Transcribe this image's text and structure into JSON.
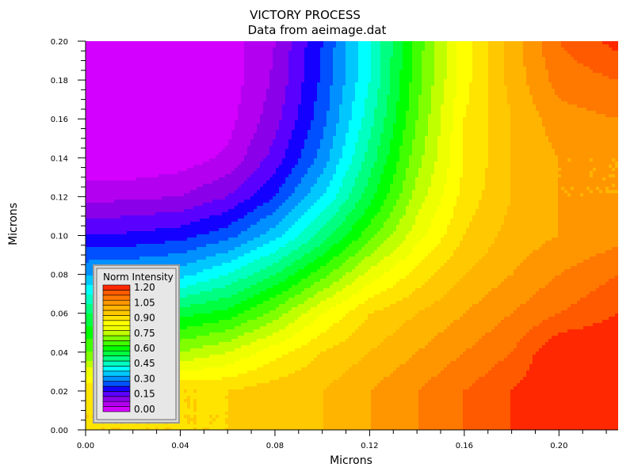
{
  "chart_data": {
    "type": "heatmap",
    "title": "VICTORY PROCESS",
    "subtitle": "Data from aeimage.dat",
    "xlabel": "Microns",
    "ylabel": "Microns",
    "xlim": [
      0.0,
      0.225
    ],
    "ylim": [
      0.0,
      0.2
    ],
    "x_ticks": [
      "0.00",
      "0.04",
      "0.08",
      "0.12",
      "0.16",
      "0.20"
    ],
    "y_ticks": [
      "0.00",
      "0.02",
      "0.04",
      "0.06",
      "0.08",
      "0.10",
      "0.12",
      "0.14",
      "0.16",
      "0.18",
      "0.20"
    ],
    "colorbar": {
      "title": "Norm Intensity",
      "min": 0.0,
      "max": 1.25,
      "step": 0.05,
      "tick_labels": [
        "1.20",
        "1.05",
        "0.90",
        "0.75",
        "0.60",
        "0.45",
        "0.30",
        "0.15",
        "0.00"
      ],
      "colors": [
        "#d400ff",
        "#b400f0",
        "#8a00e8",
        "#5a00ff",
        "#1400ff",
        "#0050ff",
        "#0090ff",
        "#00c8ff",
        "#00ffff",
        "#00ffc0",
        "#00ff80",
        "#00ff40",
        "#00ff00",
        "#40ff00",
        "#80ff00",
        "#c0ff00",
        "#eeff00",
        "#ffff00",
        "#ffe400",
        "#ffc800",
        "#ffb400",
        "#ff9600",
        "#ff7800",
        "#ff5a00",
        "#ff2800"
      ]
    },
    "grid": false,
    "legend_placement": "bottom-left",
    "x_nodes": [
      0.0,
      0.02,
      0.04,
      0.06,
      0.08,
      0.1,
      0.12,
      0.14,
      0.16,
      0.18,
      0.2,
      0.225
    ],
    "y_nodes": [
      0.0,
      0.02,
      0.04,
      0.06,
      0.08,
      0.1,
      0.12,
      0.14,
      0.16,
      0.18,
      0.2
    ],
    "values": [
      [
        0.95,
        0.95,
        0.95,
        0.95,
        0.95,
        1.0,
        1.05,
        1.1,
        1.15,
        1.2,
        1.2,
        1.2
      ],
      [
        0.95,
        0.95,
        0.95,
        0.95,
        0.98,
        1.0,
        1.05,
        1.1,
        1.15,
        1.2,
        1.25,
        1.25
      ],
      [
        0.7,
        0.72,
        0.75,
        0.8,
        0.88,
        0.95,
        1.0,
        1.05,
        1.1,
        1.15,
        1.25,
        1.25
      ],
      [
        0.55,
        0.56,
        0.58,
        0.62,
        0.72,
        0.85,
        0.95,
        1.0,
        1.05,
        1.1,
        1.15,
        1.2
      ],
      [
        0.35,
        0.36,
        0.38,
        0.45,
        0.55,
        0.68,
        0.82,
        0.92,
        1.0,
        1.05,
        1.1,
        1.15
      ],
      [
        0.2,
        0.21,
        0.23,
        0.28,
        0.38,
        0.52,
        0.68,
        0.83,
        0.95,
        1.02,
        1.05,
        1.08
      ],
      [
        0.08,
        0.09,
        0.1,
        0.15,
        0.25,
        0.4,
        0.58,
        0.77,
        0.92,
        1.0,
        1.05,
        1.05
      ],
      [
        0.0,
        0.0,
        0.02,
        0.06,
        0.17,
        0.32,
        0.52,
        0.73,
        0.9,
        1.0,
        1.05,
        1.05
      ],
      [
        0.0,
        0.0,
        0.0,
        0.03,
        0.13,
        0.28,
        0.48,
        0.7,
        0.9,
        1.0,
        1.08,
        1.1
      ],
      [
        0.0,
        0.0,
        0.0,
        0.02,
        0.11,
        0.26,
        0.45,
        0.68,
        0.88,
        1.02,
        1.12,
        1.15
      ],
      [
        0.0,
        0.0,
        0.0,
        0.02,
        0.1,
        0.25,
        0.44,
        0.67,
        0.88,
        1.02,
        1.15,
        1.22
      ]
    ]
  }
}
